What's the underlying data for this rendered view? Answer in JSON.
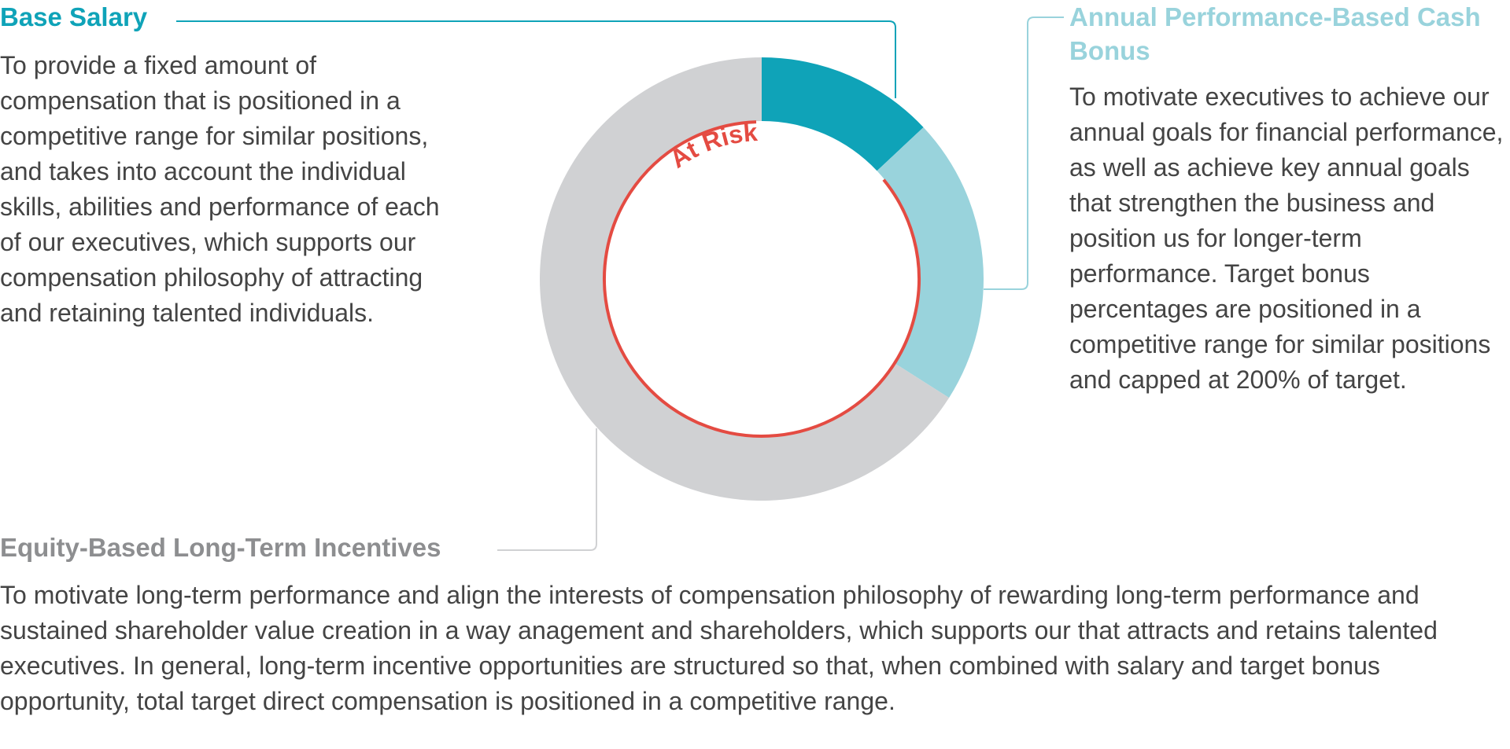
{
  "colors": {
    "base_salary": "#0fa3b8",
    "bonus": "#99d3dc",
    "equity": "#d0d1d3",
    "at_risk": "#e44b42",
    "text": "#444444",
    "equity_heading": "#8d8e90"
  },
  "sections": {
    "base_salary": {
      "title": "Base Salary",
      "description": "To provide a fixed amount of compensation that is positioned in a competitive range for similar positions, and takes into account the individual skills, abilities and performance of each of our executives, which supports our compensation philosophy of attracting and retaining talented individuals."
    },
    "bonus": {
      "title": "Annual Performance-Based Cash Bonus",
      "description": "To motivate executives to achieve our annual goals for financial performance, as well as achieve key annual goals that strengthen the business and position us for longer-term performance. Target bonus percentages are positioned in a competitive range for similar positions and capped at 200% of target."
    },
    "equity": {
      "title": "Equity-Based Long-Term Incentives",
      "description": "To motivate long-term performance and align the interests of compensation philosophy of rewarding long-term performance and sustained shareholder value creation in a way anagement and shareholders, which supports our that attracts and retains talented executives. In general, long-term incentive opportunities are structured so that, when combined with salary and target bonus opportunity, total target direct compensation is positioned in a competitive range."
    }
  },
  "chart_data": {
    "type": "pie",
    "title": "",
    "categories": [
      "Base Salary",
      "Annual Performance-Based Cash Bonus",
      "Equity-Based Long-Term Incentives"
    ],
    "values": [
      13,
      21,
      66
    ],
    "unit": "percent (estimated)",
    "colors": [
      "#0fa3b8",
      "#99d3dc",
      "#d0d1d3"
    ],
    "annotation": {
      "label": "At Risk",
      "applies_to": [
        "Annual Performance-Based Cash Bonus",
        "Equity-Based Long-Term Incentives"
      ]
    }
  }
}
